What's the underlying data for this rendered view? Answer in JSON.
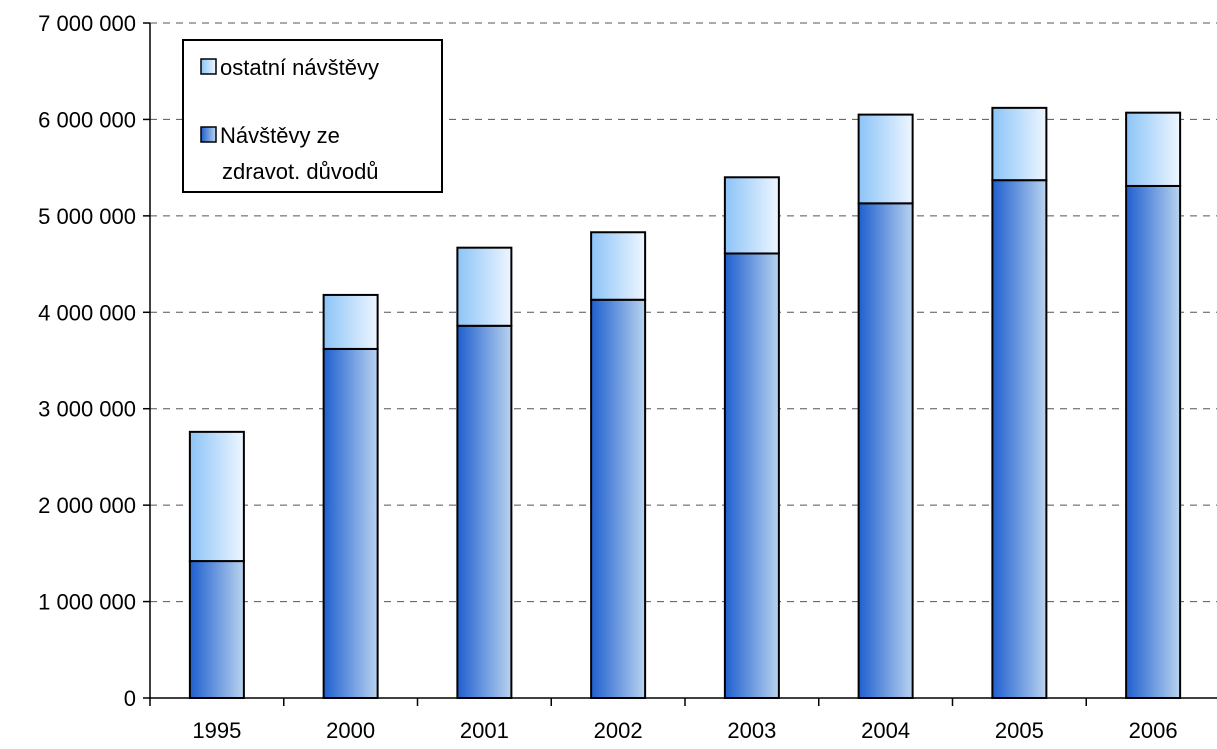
{
  "chart_data": {
    "type": "bar",
    "stacked": true,
    "title": "",
    "xlabel": "",
    "ylabel": "",
    "categories": [
      "1995",
      "2000",
      "2001",
      "2002",
      "2003",
      "2004",
      "2005",
      "2006"
    ],
    "ylim": [
      0,
      7000000
    ],
    "ytick_step": 1000000,
    "ytick_labels": [
      "0",
      "1 000 000",
      "2 000 000",
      "3 000 000",
      "4 000 000",
      "5 000 000",
      "6 000 000",
      "7 000 000"
    ],
    "grid": "horizontal dashed",
    "legend_position": "top-left",
    "series": [
      {
        "name": "Návštěvy ze zdravot. důvodů",
        "legend_lines": [
          "Návštěvy ze",
          "zdravot. důvodů"
        ],
        "values": [
          1420000,
          3620000,
          3860000,
          4130000,
          4610000,
          5130000,
          5370000,
          5310000
        ],
        "color_dark": "#1f5fcf",
        "color_light": "#b9d3ef"
      },
      {
        "name": "ostatní návštěvy",
        "legend_lines": [
          "ostatní návštěvy"
        ],
        "values": [
          1340000,
          560000,
          810000,
          700000,
          790000,
          920000,
          750000,
          760000
        ],
        "color_dark": "#8cc4f7",
        "color_light": "#eef6ff"
      }
    ]
  }
}
